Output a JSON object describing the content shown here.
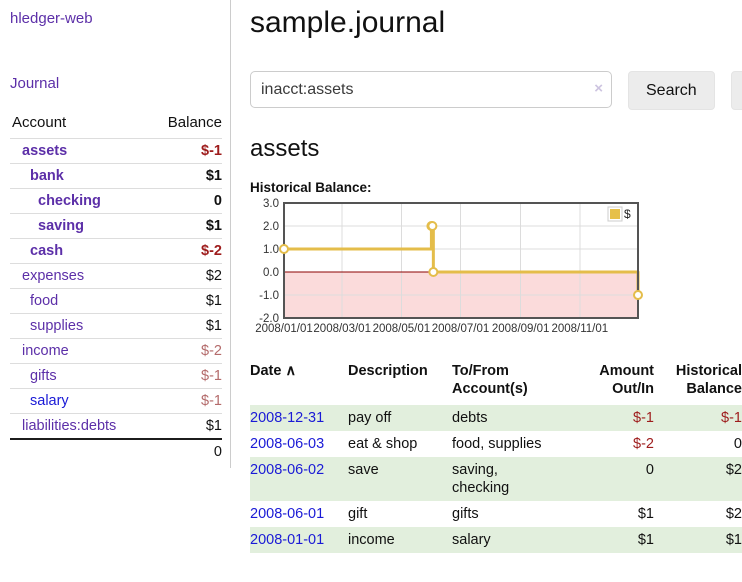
{
  "colors": {
    "link_purple": "#5c2fa8",
    "link_blue": "#1a1ad6",
    "negative_strong": "#9e1c1c",
    "negative_soft": "#b46b6b",
    "stripe_green": "#e2efdd",
    "chart_line": "#e4bd4a",
    "chart_swatch": "#e6c04a",
    "chart_negative_fill": "#fbdbdb",
    "chart_zero_line": "#8b0000",
    "chart_grid": "#dcdcdc",
    "chart_border": "#545454"
  },
  "sidebar": {
    "app_title": "hledger-web",
    "nav": {
      "journal": "Journal"
    },
    "table": {
      "col_account": "Account",
      "col_balance": "Balance"
    },
    "accounts": [
      {
        "name": "assets",
        "depth": 0,
        "bold": true,
        "balance": "$-1",
        "balance_class": "neg-strong"
      },
      {
        "name": "bank",
        "depth": 1,
        "bold": true,
        "balance": "$1",
        "balance_class": ""
      },
      {
        "name": "checking",
        "depth": 2,
        "bold": true,
        "balance": "0",
        "balance_class": ""
      },
      {
        "name": "saving",
        "depth": 2,
        "bold": true,
        "balance": "$1",
        "balance_class": ""
      },
      {
        "name": "cash",
        "depth": 1,
        "bold": true,
        "balance": "$-2",
        "balance_class": "neg-strong"
      },
      {
        "name": "expenses",
        "depth": 0,
        "bold": false,
        "balance": "$2",
        "balance_class": ""
      },
      {
        "name": "food",
        "depth": 1,
        "bold": false,
        "balance": "$1",
        "balance_class": ""
      },
      {
        "name": "supplies",
        "depth": 1,
        "bold": false,
        "balance": "$1",
        "balance_class": ""
      },
      {
        "name": "income",
        "depth": 0,
        "bold": false,
        "balance": "$-2",
        "balance_class": "neg-soft"
      },
      {
        "name": "gifts",
        "depth": 1,
        "bold": false,
        "balance": "$-1",
        "balance_class": "neg-soft"
      },
      {
        "name": "salary",
        "depth": 1,
        "bold": false,
        "balance": "$-1",
        "balance_class": "neg-soft",
        "link_color": "blue"
      },
      {
        "name": "liabilities:debts",
        "depth": 0,
        "bold": false,
        "balance": "$1",
        "balance_class": ""
      }
    ],
    "total": "0"
  },
  "content": {
    "title": "sample.journal",
    "account_heading": "assets",
    "chart_heading": "Historical Balance:"
  },
  "search": {
    "value": "inacct:assets",
    "clear": "×",
    "submit": "Search",
    "help": "?"
  },
  "chart_data": {
    "type": "line",
    "step": true,
    "title": "Historical Balance:",
    "series": [
      {
        "name": "$",
        "points": [
          [
            "2008-01-01",
            1
          ],
          [
            "2008-06-01",
            2
          ],
          [
            "2008-06-02",
            2
          ],
          [
            "2008-06-03",
            0
          ],
          [
            "2008-12-31",
            -1
          ]
        ]
      }
    ],
    "x_range": [
      "2008-01-01",
      "2008-12-31"
    ],
    "x_ticks": [
      "2008/01/01",
      "2008/03/01",
      "2008/05/01",
      "2008/07/01",
      "2008/09/01",
      "2008/11/01"
    ],
    "y_ticks": [
      3,
      2,
      1,
      0,
      -1,
      -2
    ],
    "ylim": [
      -2,
      3
    ],
    "grid": true,
    "legend": {
      "label": "$",
      "position": "top-right"
    },
    "negative_region_shaded": true
  },
  "register": {
    "headers": {
      "date": "Date",
      "date_sort": "∧",
      "description": "Description",
      "tofrom_1": "To/From",
      "tofrom_2": "Account(s)",
      "amount_1": "Amount",
      "amount_2": "Out/In",
      "balance_1": "Historical",
      "balance_2": "Balance"
    },
    "rows": [
      {
        "date": "2008-12-31",
        "description": "pay off",
        "accounts": "debts",
        "amount": "$-1",
        "amount_neg": true,
        "balance": "$-1",
        "balance_neg": true
      },
      {
        "date": "2008-06-03",
        "description": "eat & shop",
        "accounts": "food, supplies",
        "amount": "$-2",
        "amount_neg": true,
        "balance": "0",
        "balance_neg": false
      },
      {
        "date": "2008-06-02",
        "description": "save",
        "accounts": "saving,\nchecking",
        "amount": "0",
        "amount_neg": false,
        "balance": "$2",
        "balance_neg": false
      },
      {
        "date": "2008-06-01",
        "description": "gift",
        "accounts": "gifts",
        "amount": "$1",
        "amount_neg": false,
        "balance": "$2",
        "balance_neg": false
      },
      {
        "date": "2008-01-01",
        "description": "income",
        "accounts": "salary",
        "amount": "$1",
        "amount_neg": false,
        "balance": "$1",
        "balance_neg": false
      }
    ]
  }
}
